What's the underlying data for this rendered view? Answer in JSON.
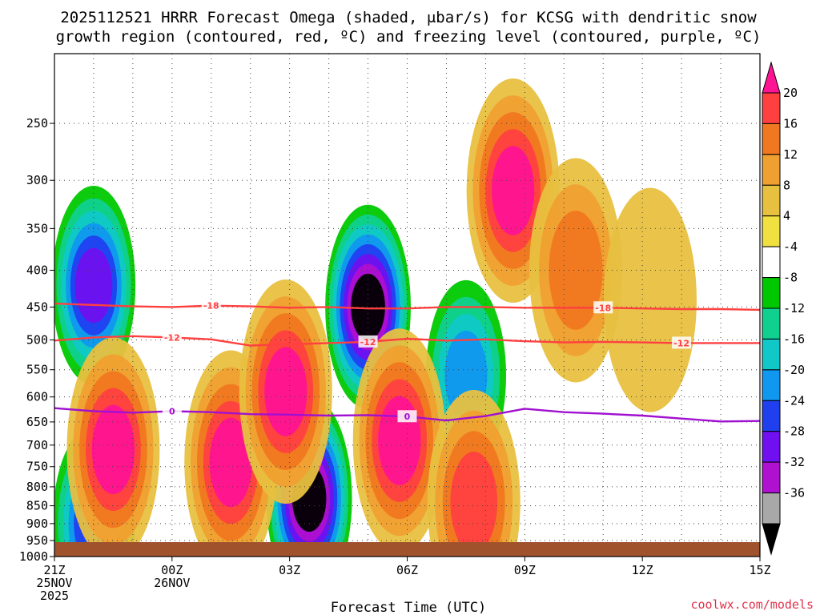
{
  "chart_data": {
    "type": "heatmap",
    "title": {
      "line1": "2025112521 HRRR Forecast Omega (shaded, μbar/s) for KCSG with dendritic snow",
      "line2": "growth region (contoured, red, ºC) and freezing level (contoured, purple, ºC)"
    },
    "xlabel": "Forecast Time (UTC)",
    "x_ticks": [
      {
        "hour": 0,
        "lines": [
          "21Z",
          "25NOV",
          "2025"
        ]
      },
      {
        "hour": 3,
        "lines": [
          "00Z",
          "26NOV"
        ]
      },
      {
        "hour": 6,
        "lines": [
          "03Z"
        ]
      },
      {
        "hour": 9,
        "lines": [
          "06Z"
        ]
      },
      {
        "hour": 12,
        "lines": [
          "09Z"
        ]
      },
      {
        "hour": 15,
        "lines": [
          "12Z"
        ]
      },
      {
        "hour": 18,
        "lines": [
          "15Z"
        ]
      }
    ],
    "xlim": [
      0,
      18
    ],
    "ylim_hPa": [
      1000,
      200
    ],
    "y_ticks": [
      250,
      300,
      350,
      400,
      450,
      500,
      550,
      600,
      650,
      700,
      750,
      800,
      850,
      900,
      950,
      1000
    ],
    "colorbar": {
      "labels": [
        "20",
        "16",
        "12",
        "8",
        "4",
        "-4",
        "-8",
        "-12",
        "-16",
        "-20",
        "-24",
        "-28",
        "-32",
        "-36"
      ],
      "colors": [
        "#ff1493",
        "#ff4040",
        "#f07820",
        "#f0a030",
        "#e8c040",
        "#f0e040",
        "#ffffff",
        "#00c800",
        "#10d090",
        "#10c8c8",
        "#1098f0",
        "#2040f0",
        "#7010f0",
        "#b010d0",
        "#a8a8a8",
        "#000000"
      ]
    },
    "omega_features": [
      {
        "t": 1.0,
        "p": 420,
        "v": -28
      },
      {
        "t": 6.5,
        "p": 830,
        "v": -36
      },
      {
        "t": 8.0,
        "p": 450,
        "v": -36
      },
      {
        "t": 1.0,
        "p": 900,
        "v": -26
      },
      {
        "t": 10.5,
        "p": 560,
        "v": -20
      },
      {
        "t": 11.7,
        "p": 310,
        "v": 20
      },
      {
        "t": 8.8,
        "p": 690,
        "v": 20
      },
      {
        "t": 1.5,
        "p": 710,
        "v": 20
      },
      {
        "t": 4.5,
        "p": 740,
        "v": 20
      },
      {
        "t": 5.9,
        "p": 590,
        "v": 20
      },
      {
        "t": 10.7,
        "p": 840,
        "v": 18
      },
      {
        "t": 13.3,
        "p": 400,
        "v": 13
      },
      {
        "t": 15.2,
        "p": 440,
        "v": 7
      }
    ],
    "contours": [
      {
        "label": "-18",
        "color": "#ff4040",
        "t": [
          0,
          1,
          2,
          3,
          4,
          5,
          6,
          7,
          8,
          9,
          10,
          11,
          12,
          13,
          14,
          15,
          16,
          17,
          18
        ],
        "p": [
          445,
          447,
          449,
          450,
          448,
          449,
          451,
          450,
          452,
          452,
          450,
          450,
          451,
          451,
          451,
          452,
          453,
          453,
          454
        ]
      },
      {
        "label": "-12",
        "color": "#ff4040",
        "t": [
          0,
          1,
          2,
          3,
          4,
          5,
          6,
          7,
          8,
          9,
          10,
          11,
          12,
          13,
          14,
          15,
          16,
          17,
          18
        ],
        "p": [
          501,
          496,
          494,
          496,
          499,
          509,
          507,
          505,
          503,
          498,
          501,
          499,
          502,
          504,
          503,
          504,
          505,
          505,
          505
        ]
      },
      {
        "label": "0",
        "color": "#a010d0",
        "t": [
          0,
          1,
          2,
          3,
          4,
          5,
          6,
          7,
          8,
          9,
          10,
          11,
          12,
          13,
          14,
          15,
          16,
          17,
          18
        ],
        "p": [
          622,
          628,
          631,
          628,
          630,
          634,
          635,
          637,
          636,
          639,
          647,
          638,
          623,
          630,
          633,
          637,
          643,
          649,
          648
        ]
      }
    ],
    "grid": true,
    "credit": "coolwx.com/models"
  }
}
